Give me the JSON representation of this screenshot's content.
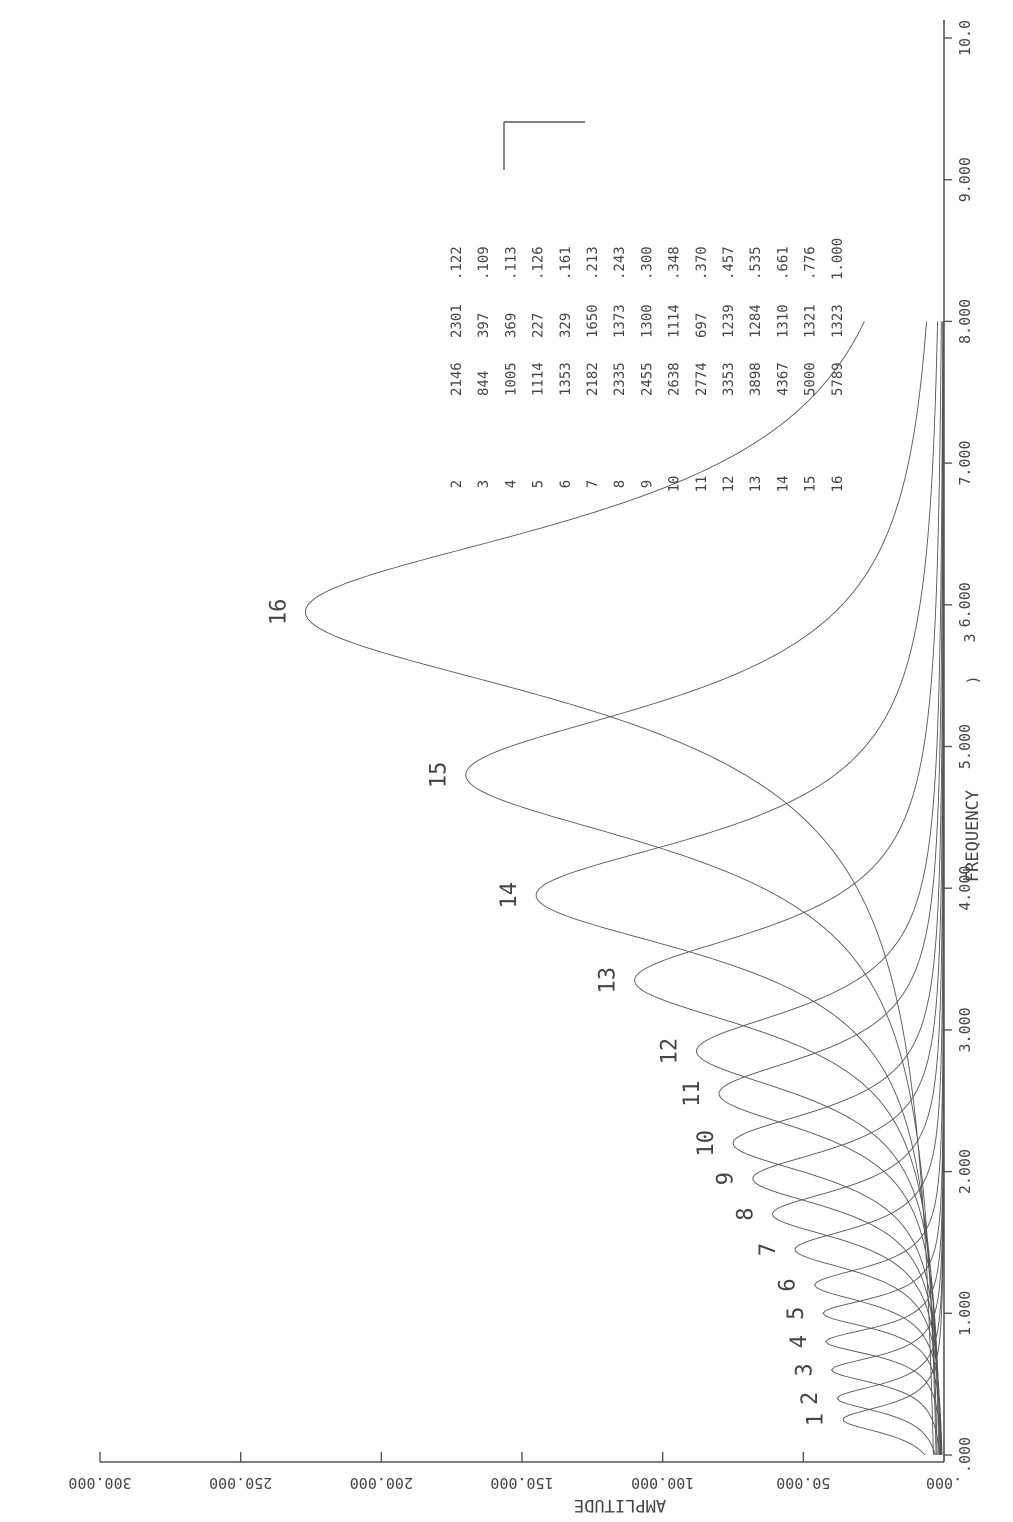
{
  "chart_data": {
    "type": "line",
    "xlabel": "FREQUENCY",
    "x_exponent_label": "3",
    "x_exponent_suffix": ")",
    "ylabel": "AMPLITUDE",
    "xlim": [
      0,
      10
    ],
    "ylim": [
      0,
      300
    ],
    "xticks": [
      ".000",
      "1.000",
      "2.000",
      "3.000",
      "4.000",
      "5.000",
      "6.000",
      "7.000",
      "8.000",
      "9.000",
      "10.0"
    ],
    "yticks": [
      ".000",
      "50.000",
      "100.000",
      "150.000",
      "200.000",
      "250.000",
      "300.000"
    ],
    "series": [
      {
        "name": "1",
        "peak_x": 0.25,
        "peak_y": 36
      },
      {
        "name": "2",
        "peak_x": 0.4,
        "peak_y": 38
      },
      {
        "name": "3",
        "peak_x": 0.6,
        "peak_y": 40
      },
      {
        "name": "4",
        "peak_x": 0.8,
        "peak_y": 42
      },
      {
        "name": "5",
        "peak_x": 1.0,
        "peak_y": 43
      },
      {
        "name": "6",
        "peak_x": 1.2,
        "peak_y": 46
      },
      {
        "name": "7",
        "peak_x": 1.45,
        "peak_y": 53
      },
      {
        "name": "8",
        "peak_x": 1.7,
        "peak_y": 61
      },
      {
        "name": "9",
        "peak_x": 1.95,
        "peak_y": 68
      },
      {
        "name": "10",
        "peak_x": 2.2,
        "peak_y": 75
      },
      {
        "name": "11",
        "peak_x": 2.55,
        "peak_y": 80
      },
      {
        "name": "12",
        "peak_x": 2.85,
        "peak_y": 88
      },
      {
        "name": "13",
        "peak_x": 3.35,
        "peak_y": 110
      },
      {
        "name": "14",
        "peak_x": 3.95,
        "peak_y": 145
      },
      {
        "name": "15",
        "peak_x": 4.8,
        "peak_y": 170
      },
      {
        "name": "16",
        "peak_x": 5.95,
        "peak_y": 227
      }
    ],
    "table": {
      "rows": [
        [
          "2",
          "2146",
          "2301",
          ".122"
        ],
        [
          "3",
          "844",
          "397",
          ".109"
        ],
        [
          "4",
          "1005",
          "369",
          ".113"
        ],
        [
          "5",
          "1114",
          "227",
          ".126"
        ],
        [
          "6",
          "1353",
          "329",
          ".161"
        ],
        [
          "7",
          "2182",
          "1650",
          ".213"
        ],
        [
          "8",
          "2335",
          "1373",
          ".243"
        ],
        [
          "9",
          "2455",
          "1300",
          ".300"
        ],
        [
          "10",
          "2638",
          "1114",
          ".348"
        ],
        [
          "11",
          "2774",
          "697",
          ".370"
        ],
        [
          "12",
          "3353",
          "1239",
          ".457"
        ],
        [
          "13",
          "3898",
          "1284",
          ".535"
        ],
        [
          "14",
          "4367",
          "1310",
          ".661"
        ],
        [
          "15",
          "5000",
          "1321",
          ".776"
        ],
        [
          "16",
          "5789",
          "1323",
          "1.000"
        ]
      ]
    }
  }
}
